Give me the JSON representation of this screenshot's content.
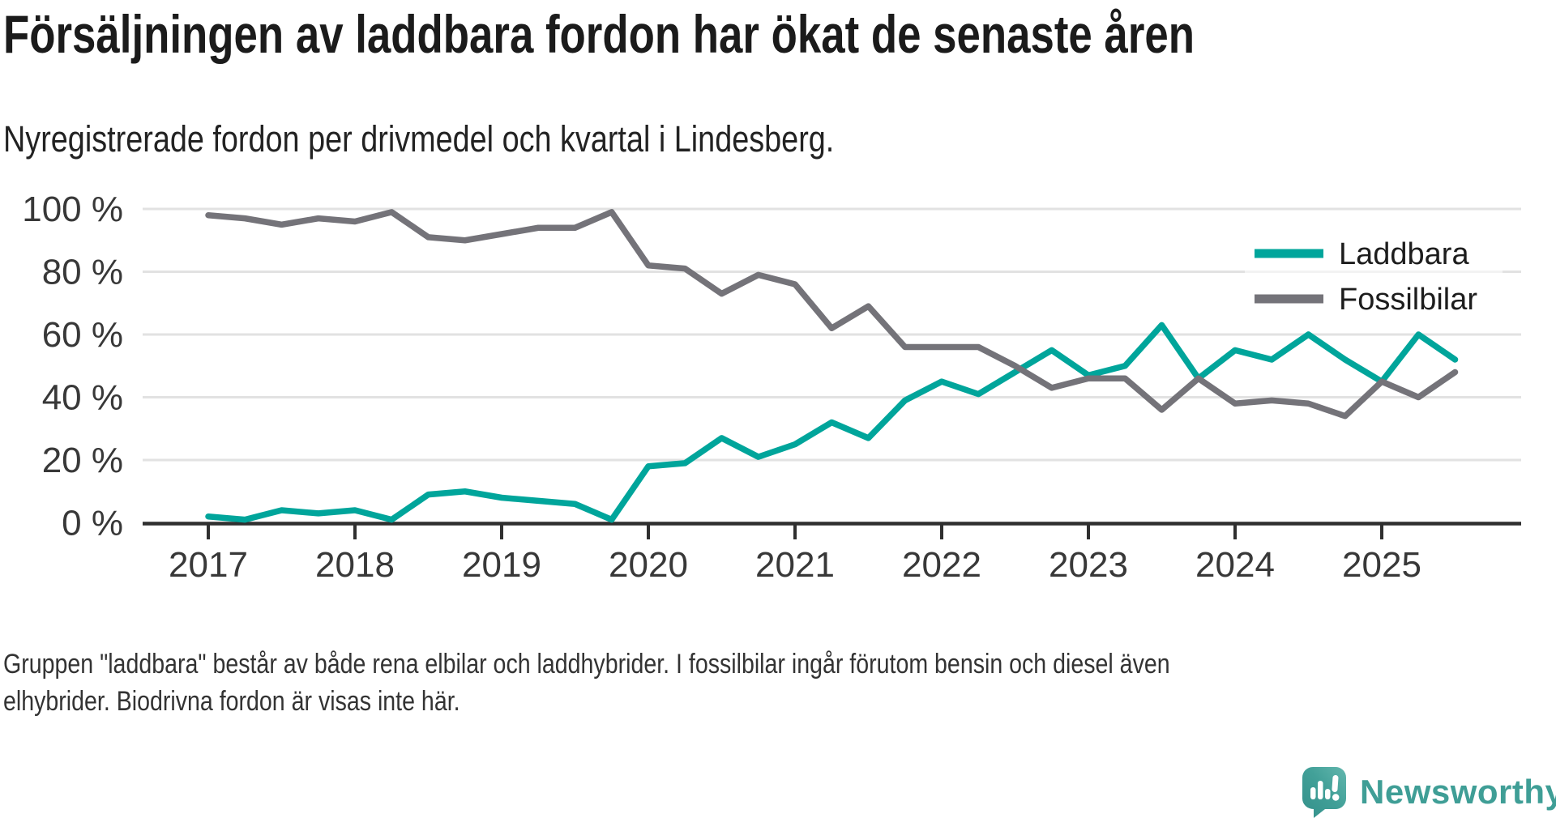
{
  "title": "Försäljningen av laddbara fordon har ökat de senaste åren",
  "subtitle": "Nyregistrerade fordon per drivmedel och kvartal i Lindesberg.",
  "footnote": "Gruppen \"laddbara\" består av både rena elbilar och laddhybrider. I fossilbilar ingår förutom bensin och diesel även elhybrider. Biodrivna fordon är visas inte här.",
  "logo": {
    "text": "Newsworthy"
  },
  "colors": {
    "laddbara": "#00a59b",
    "fossilbilar": "#747379",
    "gridline": "#e2e2e2",
    "axis": "#2f2f2f",
    "tick_label": "#383838",
    "legend_text": "#1d1d1d",
    "logo_teal": "#3f9e96"
  },
  "chart_data": {
    "type": "line",
    "title": "Försäljningen av laddbara fordon har ökat de senaste åren",
    "subtitle": "Nyregistrerade fordon per drivmedel och kvartal i Lindesberg.",
    "x_unit": "quarter",
    "grid": "horizontal",
    "legend_position": "top-right-inside",
    "ylim": [
      0,
      100
    ],
    "y_tick_labels": [
      "0 %",
      "20 %",
      "40 %",
      "60 %",
      "80 %",
      "100 %"
    ],
    "x_tick_labels": [
      "2017",
      "2018",
      "2019",
      "2020",
      "2021",
      "2022",
      "2023",
      "2024",
      "2025"
    ],
    "quarters": [
      "2017 Q1",
      "2017 Q2",
      "2017 Q3",
      "2017 Q4",
      "2018 Q1",
      "2018 Q2",
      "2018 Q3",
      "2018 Q4",
      "2019 Q1",
      "2019 Q2",
      "2019 Q3",
      "2019 Q4",
      "2020 Q1",
      "2020 Q2",
      "2020 Q3",
      "2020 Q4",
      "2021 Q1",
      "2021 Q2",
      "2021 Q3",
      "2021 Q4",
      "2022 Q1",
      "2022 Q2",
      "2022 Q3",
      "2022 Q4",
      "2023 Q1",
      "2023 Q2",
      "2023 Q3",
      "2023 Q4",
      "2024 Q1",
      "2024 Q2",
      "2024 Q3",
      "2024 Q4",
      "2025 Q1",
      "2025 Q2",
      "2025 Q3"
    ],
    "series": [
      {
        "name": "Laddbara",
        "color": "#00a59b",
        "values": [
          2,
          1,
          4,
          3,
          4,
          1,
          9,
          10,
          8,
          7,
          6,
          1,
          18,
          19,
          27,
          21,
          25,
          32,
          27,
          39,
          45,
          41,
          48,
          55,
          47,
          50,
          63,
          46,
          55,
          52,
          60,
          52,
          45,
          60,
          52
        ]
      },
      {
        "name": "Fossilbilar",
        "color": "#747379",
        "values": [
          98,
          97,
          95,
          97,
          96,
          99,
          91,
          90,
          92,
          94,
          94,
          99,
          82,
          81,
          73,
          79,
          76,
          62,
          69,
          56,
          56,
          56,
          50,
          43,
          46,
          46,
          36,
          46,
          38,
          39,
          38,
          34,
          45,
          40,
          48
        ]
      }
    ]
  }
}
